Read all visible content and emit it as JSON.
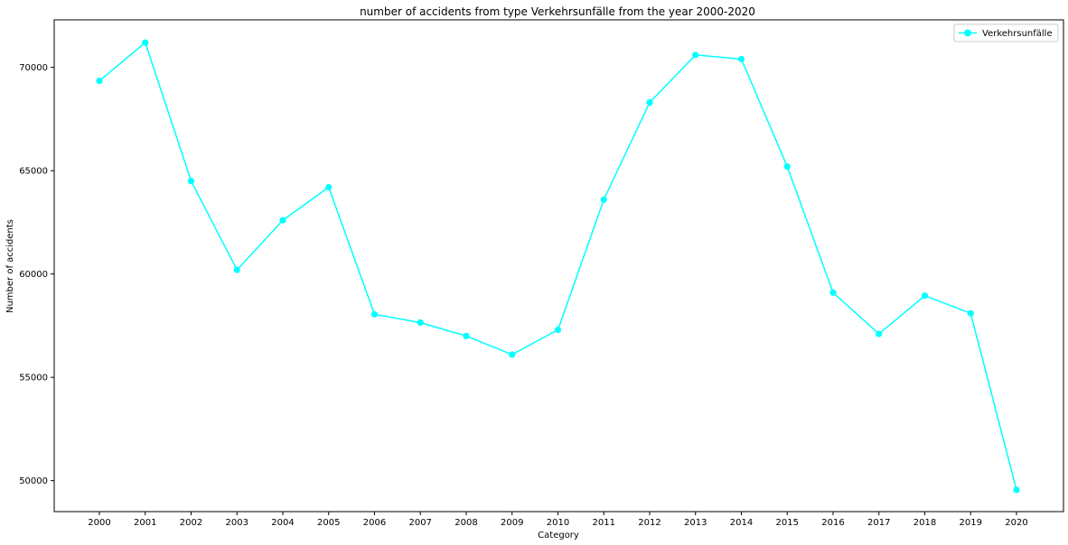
{
  "chart_data": {
    "type": "line",
    "title": "number of accidents from type Verkehrsunfälle from the year 2000-2020",
    "xlabel": "Category",
    "ylabel": "Number of accidents",
    "categories": [
      "2000",
      "2001",
      "2002",
      "2003",
      "2004",
      "2005",
      "2006",
      "2007",
      "2008",
      "2009",
      "2010",
      "2011",
      "2012",
      "2013",
      "2014",
      "2015",
      "2016",
      "2017",
      "2018",
      "2019",
      "2020"
    ],
    "series": [
      {
        "name": "Verkehrsunfälle",
        "color": "#00ffff",
        "marker": "circle",
        "values": [
          69350,
          71200,
          64500,
          60200,
          62600,
          64200,
          58050,
          57650,
          57000,
          56100,
          57300,
          63600,
          68300,
          70600,
          70400,
          65200,
          59100,
          57100,
          58950,
          58100,
          49550
        ]
      }
    ],
    "ylim": [
      48500,
      72300
    ],
    "yticks": [
      50000,
      55000,
      60000,
      65000,
      70000
    ],
    "grid": false,
    "legend": "upper right"
  }
}
